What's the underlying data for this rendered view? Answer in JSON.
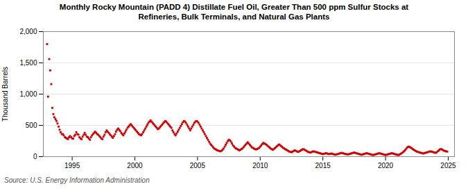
{
  "chart_data": {
    "type": "scatter",
    "title": "Monthly Rocky Mountain (PADD 4) Distillate Fuel Oil, Greater Than 500 ppm Sulfur Stocks at\nRefineries, Bulk Terminals, and Natural Gas Plants",
    "ylabel": "Thousand Barrels",
    "caption": "Source: U.S. Energy Information Administration",
    "color": "#cc0000",
    "marker": "square",
    "grid": "y",
    "xlim": [
      1992.7,
      2025.5
    ],
    "xticks": [
      1995,
      2000,
      2005,
      2010,
      2015,
      2020,
      2025
    ],
    "ylim": [
      0,
      2000
    ],
    "yticks": [
      0,
      500,
      {
        "value": 1000,
        "label": "1,000"
      },
      {
        "value": 1500,
        "label": "1,500"
      },
      {
        "value": 2000,
        "label": "2,000"
      }
    ],
    "x": [
      1993.0,
      1993.08,
      1993.17,
      1993.25,
      1993.33,
      1993.42,
      1993.5,
      1993.58,
      1993.67,
      1993.75,
      1993.83,
      1993.92,
      1994.0,
      1994.08,
      1994.17,
      1994.25,
      1994.33,
      1994.42,
      1994.5,
      1994.58,
      1994.67,
      1994.75,
      1994.83,
      1994.92,
      1995.0,
      1995.08,
      1995.17,
      1995.25,
      1995.33,
      1995.42,
      1995.5,
      1995.58,
      1995.67,
      1995.75,
      1995.83,
      1995.92,
      1996.0,
      1996.08,
      1996.17,
      1996.25,
      1996.33,
      1996.42,
      1996.5,
      1996.58,
      1996.67,
      1996.75,
      1996.83,
      1996.92,
      1997.0,
      1997.08,
      1997.17,
      1997.25,
      1997.33,
      1997.42,
      1997.5,
      1997.58,
      1997.67,
      1997.75,
      1997.83,
      1997.92,
      1998.0,
      1998.08,
      1998.17,
      1998.25,
      1998.33,
      1998.42,
      1998.5,
      1998.58,
      1998.67,
      1998.75,
      1998.83,
      1998.92,
      1999.0,
      1999.08,
      1999.17,
      1999.25,
      1999.33,
      1999.42,
      1999.5,
      1999.58,
      1999.67,
      1999.75,
      1999.83,
      1999.92,
      2000.0,
      2000.08,
      2000.17,
      2000.25,
      2000.33,
      2000.42,
      2000.5,
      2000.58,
      2000.67,
      2000.75,
      2000.83,
      2000.92,
      2001.0,
      2001.08,
      2001.17,
      2001.25,
      2001.33,
      2001.42,
      2001.5,
      2001.58,
      2001.67,
      2001.75,
      2001.83,
      2001.92,
      2002.0,
      2002.08,
      2002.17,
      2002.25,
      2002.33,
      2002.42,
      2002.5,
      2002.58,
      2002.67,
      2002.75,
      2002.83,
      2002.92,
      2003.0,
      2003.08,
      2003.17,
      2003.25,
      2003.33,
      2003.42,
      2003.5,
      2003.58,
      2003.67,
      2003.75,
      2003.83,
      2003.92,
      2004.0,
      2004.08,
      2004.17,
      2004.25,
      2004.33,
      2004.42,
      2004.5,
      2004.58,
      2004.67,
      2004.75,
      2004.83,
      2004.92,
      2005.0,
      2005.08,
      2005.17,
      2005.25,
      2005.33,
      2005.42,
      2005.5,
      2005.58,
      2005.67,
      2005.75,
      2005.83,
      2005.92,
      2006.0,
      2006.08,
      2006.17,
      2006.25,
      2006.33,
      2006.42,
      2006.5,
      2006.58,
      2006.67,
      2006.75,
      2006.83,
      2006.92,
      2007.0,
      2007.08,
      2007.17,
      2007.25,
      2007.33,
      2007.42,
      2007.5,
      2007.58,
      2007.67,
      2007.75,
      2007.83,
      2007.92,
      2008.0,
      2008.08,
      2008.17,
      2008.25,
      2008.33,
      2008.42,
      2008.5,
      2008.58,
      2008.67,
      2008.75,
      2008.83,
      2008.92,
      2009.0,
      2009.08,
      2009.17,
      2009.25,
      2009.33,
      2009.42,
      2009.5,
      2009.58,
      2009.67,
      2009.75,
      2009.83,
      2009.92,
      2010.0,
      2010.08,
      2010.17,
      2010.25,
      2010.33,
      2010.42,
      2010.5,
      2010.58,
      2010.67,
      2010.75,
      2010.83,
      2010.92,
      2011.0,
      2011.08,
      2011.17,
      2011.25,
      2011.33,
      2011.42,
      2011.5,
      2011.58,
      2011.67,
      2011.75,
      2011.83,
      2011.92,
      2012.0,
      2012.08,
      2012.17,
      2012.25,
      2012.33,
      2012.42,
      2012.5,
      2012.58,
      2012.67,
      2012.75,
      2012.83,
      2012.92,
      2013.0,
      2013.08,
      2013.17,
      2013.25,
      2013.33,
      2013.42,
      2013.5,
      2013.58,
      2013.67,
      2013.75,
      2013.83,
      2013.92,
      2014.0,
      2014.08,
      2014.17,
      2014.25,
      2014.33,
      2014.42,
      2014.5,
      2014.58,
      2014.67,
      2014.75,
      2014.83,
      2014.92,
      2015.0,
      2015.08,
      2015.17,
      2015.25,
      2015.33,
      2015.42,
      2015.5,
      2015.58,
      2015.67,
      2015.75,
      2015.83,
      2015.92,
      2016.0,
      2016.08,
      2016.17,
      2016.25,
      2016.33,
      2016.42,
      2016.5,
      2016.58,
      2016.67,
      2016.75,
      2016.83,
      2016.92,
      2017.0,
      2017.08,
      2017.17,
      2017.25,
      2017.33,
      2017.42,
      2017.5,
      2017.58,
      2017.67,
      2017.75,
      2017.83,
      2017.92,
      2018.0,
      2018.08,
      2018.17,
      2018.25,
      2018.33,
      2018.42,
      2018.5,
      2018.58,
      2018.67,
      2018.75,
      2018.83,
      2018.92,
      2019.0,
      2019.08,
      2019.17,
      2019.25,
      2019.33,
      2019.42,
      2019.5,
      2019.58,
      2019.67,
      2019.75,
      2019.83,
      2019.92,
      2020.0,
      2020.08,
      2020.17,
      2020.25,
      2020.33,
      2020.42,
      2020.5,
      2020.58,
      2020.67,
      2020.75,
      2020.83,
      2020.92,
      2021.0,
      2021.08,
      2021.17,
      2021.25,
      2021.33,
      2021.42,
      2021.5,
      2021.58,
      2021.67,
      2021.75,
      2021.83,
      2021.92,
      2022.0,
      2022.08,
      2022.17,
      2022.25,
      2022.33,
      2022.42,
      2022.5,
      2022.58,
      2022.67,
      2022.75,
      2022.83,
      2022.92,
      2023.0,
      2023.08,
      2023.17,
      2023.25,
      2023.33,
      2023.42,
      2023.5,
      2023.58,
      2023.67,
      2023.75,
      2023.83,
      2023.92,
      2024.0,
      2024.08,
      2024.17,
      2024.25,
      2024.33,
      2024.42,
      2024.5,
      2024.58,
      2024.67,
      2024.75,
      2024.83,
      2024.92
    ],
    "values": [
      1800,
      960,
      1560,
      1380,
      1160,
      780,
      680,
      630,
      600,
      570,
      530,
      480,
      430,
      390,
      360,
      360,
      340,
      310,
      300,
      290,
      280,
      310,
      330,
      310,
      290,
      290,
      330,
      350,
      390,
      360,
      350,
      310,
      290,
      280,
      320,
      350,
      380,
      350,
      320,
      310,
      290,
      270,
      310,
      340,
      360,
      380,
      400,
      380,
      360,
      350,
      330,
      310,
      290,
      280,
      320,
      350,
      390,
      420,
      400,
      380,
      360,
      340,
      320,
      300,
      330,
      360,
      400,
      430,
      450,
      430,
      410,
      380,
      360,
      340,
      370,
      400,
      430,
      460,
      480,
      500,
      520,
      500,
      480,
      460,
      440,
      420,
      400,
      380,
      360,
      350,
      340,
      360,
      390,
      420,
      450,
      480,
      510,
      540,
      560,
      580,
      560,
      540,
      520,
      500,
      480,
      460,
      440,
      450,
      470,
      490,
      510,
      530,
      550,
      570,
      560,
      540,
      520,
      500,
      480,
      460,
      420,
      390,
      360,
      340,
      370,
      400,
      430,
      460,
      490,
      520,
      550,
      570,
      560,
      540,
      510,
      480,
      450,
      420,
      450,
      480,
      510,
      540,
      560,
      570,
      560,
      540,
      510,
      480,
      450,
      420,
      390,
      360,
      330,
      300,
      270,
      240,
      210,
      190,
      170,
      150,
      130,
      120,
      110,
      100,
      95,
      90,
      85,
      95,
      110,
      130,
      160,
      190,
      220,
      250,
      270,
      260,
      240,
      210,
      180,
      160,
      140,
      130,
      120,
      110,
      100,
      110,
      120,
      130,
      150,
      170,
      190,
      210,
      230,
      210,
      190,
      170,
      150,
      140,
      130,
      120,
      115,
      120,
      130,
      140,
      160,
      180,
      200,
      220,
      210,
      200,
      190,
      175,
      160,
      145,
      130,
      120,
      110,
      120,
      135,
      150,
      165,
      180,
      195,
      185,
      170,
      155,
      140,
      130,
      120,
      110,
      100,
      90,
      80,
      75,
      70,
      80,
      90,
      100,
      95,
      85,
      75,
      80,
      90,
      100,
      110,
      120,
      115,
      105,
      95,
      85,
      75,
      70,
      65,
      70,
      80,
      85,
      80,
      75,
      70,
      65,
      60,
      55,
      50,
      45,
      40,
      45,
      50,
      55,
      50,
      45,
      40,
      45,
      50,
      45,
      40,
      35,
      30,
      35,
      40,
      45,
      50,
      55,
      60,
      55,
      50,
      45,
      40,
      38,
      35,
      40,
      45,
      50,
      55,
      60,
      65,
      60,
      55,
      50,
      45,
      40,
      35,
      30,
      35,
      40,
      45,
      50,
      55,
      50,
      45,
      40,
      35,
      30,
      25,
      30,
      35,
      40,
      45,
      50,
      55,
      50,
      45,
      40,
      35,
      30,
      25,
      30,
      35,
      40,
      45,
      50,
      55,
      50,
      45,
      40,
      35,
      30,
      25,
      30,
      40,
      50,
      60,
      75,
      90,
      110,
      130,
      150,
      160,
      155,
      145,
      135,
      120,
      110,
      100,
      90,
      80,
      75,
      70,
      65,
      60,
      55,
      50,
      55,
      60,
      65,
      70,
      75,
      80,
      85,
      80,
      75,
      70,
      65,
      60,
      70,
      85,
      100,
      115,
      120,
      115,
      105,
      95,
      90,
      85,
      80
    ]
  }
}
